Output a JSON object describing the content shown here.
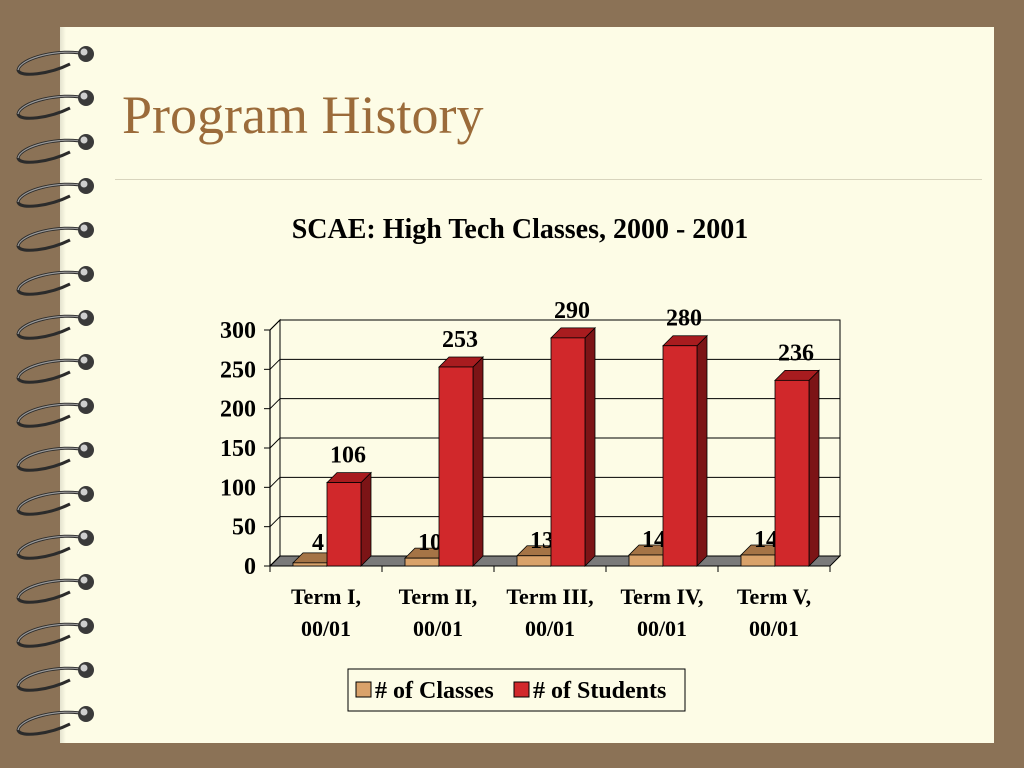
{
  "slide": {
    "title": "Program History"
  },
  "colors": {
    "background": "#8b7256",
    "page": "#fdfce6",
    "title": "#9b6b3a",
    "classes_front": "#d9a26a",
    "classes_top": "#a57446",
    "classes_side": "#8a5e38",
    "students_front": "#d1282b",
    "students_top": "#a81c1f",
    "students_side": "#7c1416"
  },
  "chart_data": {
    "type": "bar",
    "title": "SCAE: High Tech Classes, 2000 - 2001",
    "categories": [
      [
        "Term I,",
        "00/01"
      ],
      [
        "Term II,",
        "00/01"
      ],
      [
        "Term III,",
        "00/01"
      ],
      [
        "Term IV,",
        "00/01"
      ],
      [
        "Term V,",
        "00/01"
      ]
    ],
    "series": [
      {
        "name": "# of Classes",
        "values": [
          4,
          10,
          13,
          14,
          14
        ]
      },
      {
        "name": "# of Students",
        "values": [
          106,
          253,
          290,
          280,
          236
        ]
      }
    ],
    "ylim": [
      0,
      300
    ],
    "yticks": [
      0,
      50,
      100,
      150,
      200,
      250,
      300
    ],
    "grid": true,
    "legend": "bottom",
    "xlabel": "",
    "ylabel": ""
  }
}
